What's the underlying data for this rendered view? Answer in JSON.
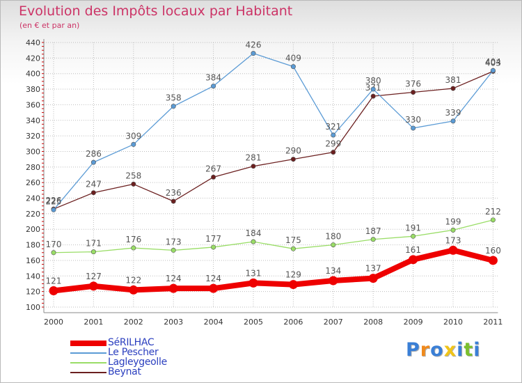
{
  "chart_data": {
    "type": "line",
    "title": "Evolution des Impôts locaux par Habitant",
    "subtitle": "(en € et par an)",
    "x": [
      "2000",
      "2001",
      "2002",
      "2003",
      "2004",
      "2005",
      "2006",
      "2007",
      "2008",
      "2009",
      "2010",
      "2011"
    ],
    "ylim": [
      100,
      440
    ],
    "yticks": [
      "100",
      "120",
      "140",
      "160",
      "180",
      "200",
      "220",
      "240",
      "260",
      "280",
      "300",
      "320",
      "340",
      "360",
      "380",
      "400",
      "420",
      "440"
    ],
    "grid": true,
    "legend_position": "bottom-left",
    "series": [
      {
        "name": "SéRILHAC",
        "color": "#ee0000",
        "values": [
          121,
          127,
          122,
          124,
          124,
          131,
          129,
          134,
          137,
          161,
          173,
          160
        ]
      },
      {
        "name": "Le Pescher",
        "color": "#5b9bd5",
        "values": [
          225,
          286,
          309,
          358,
          384,
          426,
          409,
          321,
          380,
          330,
          339,
          404
        ]
      },
      {
        "name": "Lagleygeolle",
        "color": "#99dd66",
        "values": [
          170,
          171,
          176,
          173,
          177,
          184,
          175,
          180,
          187,
          191,
          199,
          212
        ]
      },
      {
        "name": "Beynat",
        "color": "#6b1f1f",
        "values": [
          226,
          247,
          258,
          236,
          267,
          281,
          290,
          299,
          371,
          376,
          381,
          403
        ]
      }
    ]
  },
  "logo": {
    "letters": [
      "P",
      "r",
      "o",
      "x",
      "i",
      "t",
      "i"
    ],
    "colors": [
      "#3a7fd6",
      "#f08a1c",
      "#3a7fd6",
      "#f0c419",
      "#3a7fd6",
      "#7bbf2e",
      "#3a7fd6"
    ]
  }
}
